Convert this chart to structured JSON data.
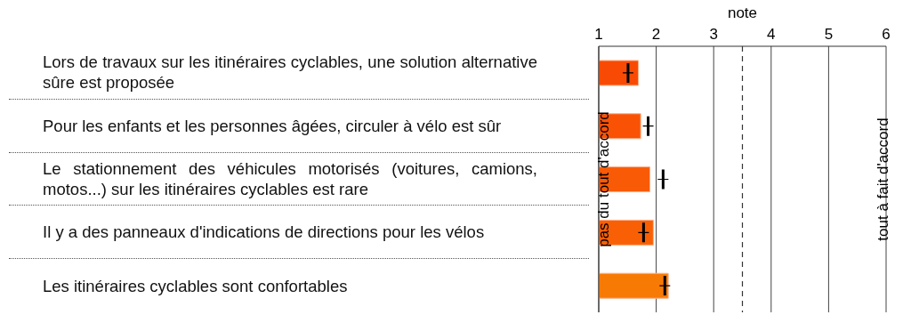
{
  "chart_data": {
    "type": "bar",
    "orientation": "horizontal",
    "xlabel": "note",
    "ylabel": "pas du tout d'accord",
    "y2label": "tout à fait d'accord",
    "categories": [
      "Lors de travaux sur les itinéraires cyclables, une solution alternative sûre est proposée",
      "Pour les enfants et les personnes âgées, circuler à vélo est sûr",
      "Le stationnement des véhicules motorisés (voitures, camions, motos...) sur les itinéraires cyclables est rare",
      "Il y a des panneaux d'indications de directions pour les vélos",
      "Les itinéraires cyclables sont confortables"
    ],
    "series": [
      {
        "type": "bar",
        "colors": [
          "#f94a05",
          "#f95205",
          "#f95a05",
          "#f96005",
          "#f77a05"
        ],
        "values": [
          1.69,
          1.73,
          1.89,
          1.95,
          2.21
        ]
      },
      {
        "type": "scatter",
        "color": "#000000",
        "marker": "cross",
        "values": [
          1.51,
          1.86,
          2.12,
          1.78,
          2.15
        ]
      }
    ],
    "xlim": [
      1,
      6
    ],
    "xticks": [
      1,
      2,
      3,
      4,
      5,
      6
    ],
    "grid": "x",
    "ref_lines": [
      {
        "axis": "x",
        "value": 3.5,
        "line_style": "dashed",
        "color": "#333333"
      }
    ]
  }
}
